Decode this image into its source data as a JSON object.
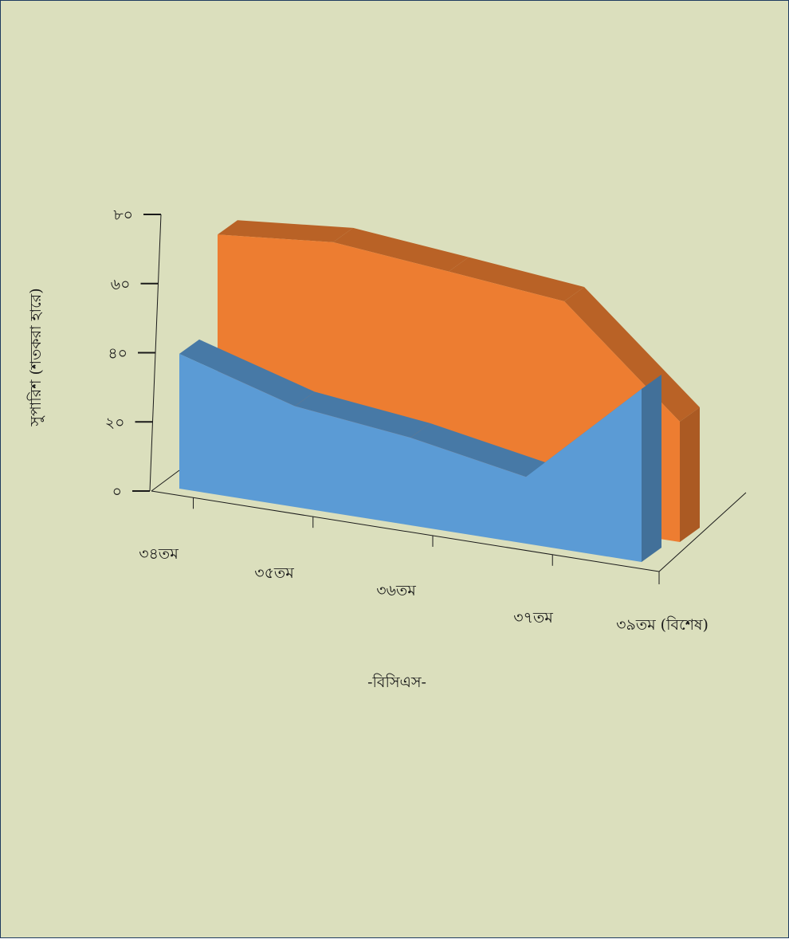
{
  "chart_data": {
    "type": "area",
    "style": "3d-area",
    "categories": [
      "৩৪তম",
      "৩৫তম",
      "৩৬তম",
      "৩৭তম",
      "৩৯তম (বিশেষ)"
    ],
    "series": [
      {
        "values": [
          38,
          28,
          24,
          18,
          46
        ],
        "color": "#5b9bd5"
      },
      {
        "values": [
          66,
          68,
          64,
          60,
          32
        ],
        "color": "#ed7d31"
      }
    ],
    "xlabel": "-বিসিএস-",
    "ylabel": "সুপারিশ (শতকরা হারে)",
    "ylim": [
      0,
      80
    ],
    "yticks": [
      "০",
      "২০",
      "৪০",
      "৬০",
      "৮০"
    ],
    "grid": false,
    "legend": "none"
  }
}
